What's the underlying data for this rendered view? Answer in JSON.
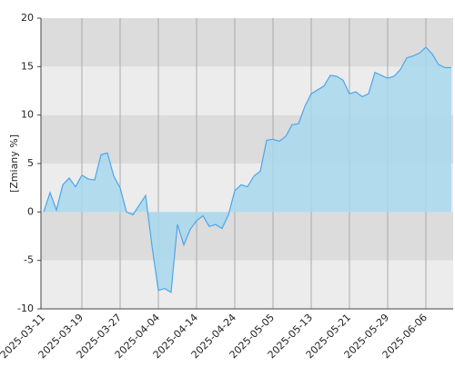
{
  "chart_data": {
    "type": "area",
    "y_label": "[Zmiany %]",
    "categories": [
      "2025-03-11",
      null,
      null,
      null,
      null,
      null,
      "2025-03-19",
      null,
      null,
      null,
      null,
      null,
      "2025-03-27",
      null,
      null,
      null,
      null,
      null,
      "2025-04-04",
      null,
      null,
      null,
      null,
      null,
      "2025-04-14",
      null,
      null,
      null,
      null,
      null,
      "2025-04-24",
      null,
      null,
      null,
      null,
      null,
      "2025-05-05",
      null,
      null,
      null,
      null,
      null,
      "2025-05-13",
      null,
      null,
      null,
      null,
      null,
      "2025-05-21",
      null,
      null,
      null,
      null,
      null,
      "2025-05-29",
      null,
      null,
      null,
      null,
      null,
      "2025-06-06",
      null,
      null,
      null,
      null
    ],
    "series": [
      {
        "color": "#4da6e8",
        "fill": "#a8d8ee",
        "values": [
          0,
          2,
          0.2,
          2.8,
          3.5,
          2.6,
          3.8,
          3.4,
          3.3,
          5.9,
          6.1,
          3.7,
          2.5,
          0,
          -0.3,
          0.7,
          1.7,
          -3.5,
          -8.1,
          -7.9,
          -8.3,
          -1.3,
          -3.4,
          -1.8,
          -0.9,
          -0.4,
          -1.5,
          -1.3,
          -1.7,
          -0.3,
          2.2,
          2.8,
          2.6,
          3.7,
          4.2,
          7.4,
          7.5,
          7.3,
          7.8,
          9.0,
          9.1,
          10.9,
          12.2,
          12.6,
          13.0,
          14.1,
          14.0,
          13.6,
          12.2,
          12.4,
          11.9,
          12.2,
          14.4,
          14.1,
          13.8,
          14.0,
          14.7,
          15.9,
          16.1,
          16.4,
          17.0,
          16.3,
          15.2,
          14.9,
          14.9
        ]
      }
    ],
    "ylim": [
      -10,
      20
    ],
    "yticks": [
      -10,
      -5,
      0,
      5,
      10,
      15,
      20
    ],
    "band_colors": [
      "#ececec",
      "#dcdcdc"
    ]
  }
}
